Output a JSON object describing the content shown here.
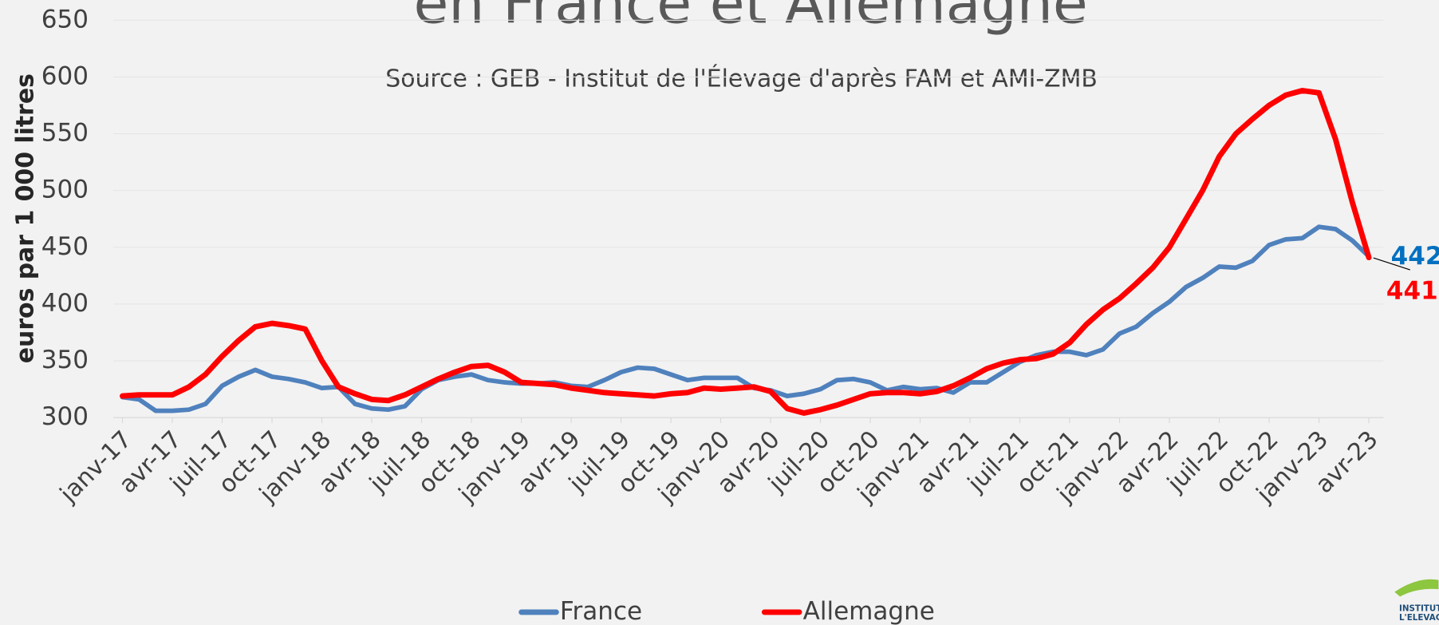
{
  "chart_data": {
    "type": "line",
    "title": "en France et Allemagne",
    "subtitle": "Source : GEB - Institut de l'Élevage d'après FAM et AMI-ZMB",
    "y_label": "euros par 1 000 litres",
    "logo_text": [
      "INSTITUT D",
      "L'ELEVAG"
    ],
    "categories": [
      "janv-17",
      null,
      null,
      "avr-17",
      null,
      null,
      "juil-17",
      null,
      null,
      "oct-17",
      null,
      null,
      "janv-18",
      null,
      null,
      "avr-18",
      null,
      null,
      "juil-18",
      null,
      null,
      "oct-18",
      null,
      null,
      "janv-19",
      null,
      null,
      "avr-19",
      null,
      null,
      "juil-19",
      null,
      null,
      "oct-19",
      null,
      null,
      "janv-20",
      null,
      null,
      "avr-20",
      null,
      null,
      "juil-20",
      null,
      null,
      "oct-20",
      null,
      null,
      "janv-21",
      null,
      null,
      "avr-21",
      null,
      null,
      "juil-21",
      null,
      null,
      "oct-21",
      null,
      null,
      "janv-22",
      null,
      null,
      "avr-22",
      null,
      null,
      "juil-22",
      null,
      null,
      "oct-22",
      null,
      null,
      "janv-23",
      null,
      null,
      "avr-23"
    ],
    "series": [
      {
        "name": "France",
        "color": "#4f81bd",
        "label_color": "#0070c0",
        "values": [
          318,
          316,
          306,
          306,
          307,
          312,
          328,
          336,
          342,
          336,
          334,
          331,
          326,
          327,
          312,
          308,
          307,
          310,
          325,
          333,
          336,
          338,
          333,
          331,
          330,
          330,
          331,
          328,
          327,
          333,
          340,
          344,
          343,
          338,
          333,
          335,
          335,
          335,
          326,
          324,
          319,
          321,
          325,
          333,
          334,
          331,
          324,
          327,
          325,
          326,
          322,
          331,
          331,
          340,
          349,
          355,
          358,
          358,
          355,
          360,
          374,
          380,
          392,
          402,
          415,
          423,
          433,
          432,
          438,
          452,
          457,
          458,
          468,
          466,
          456,
          442
        ]
      },
      {
        "name": "Allemagne",
        "color": "#ff0000",
        "label_color": "#ff0000",
        "values": [
          319,
          320,
          320,
          320,
          327,
          338,
          354,
          368,
          380,
          383,
          381,
          378,
          350,
          327,
          321,
          316,
          315,
          320,
          327,
          334,
          340,
          345,
          346,
          340,
          331,
          330,
          329,
          326,
          324,
          322,
          321,
          320,
          319,
          321,
          322,
          326,
          325,
          326,
          327,
          323,
          308,
          304,
          307,
          311,
          316,
          321,
          322,
          322,
          321,
          323,
          328,
          335,
          343,
          348,
          351,
          352,
          356,
          366,
          382,
          395,
          405,
          418,
          432,
          450,
          475,
          500,
          530,
          550,
          563,
          575,
          584,
          588,
          586,
          545,
          490,
          441
        ]
      }
    ],
    "ylim": [
      300,
      650
    ],
    "yticks": [
      300,
      350,
      400,
      450,
      500,
      550,
      600,
      650
    ],
    "grid": true
  }
}
